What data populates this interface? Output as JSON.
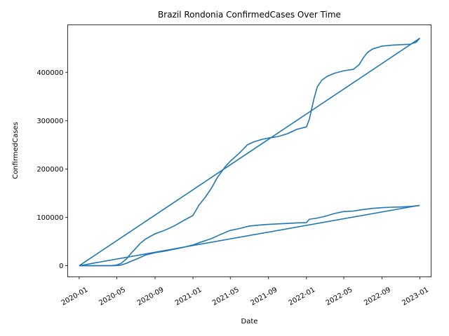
{
  "chart_data": {
    "type": "line",
    "title": "Brazil Rondonia ConfirmedCases Over Time",
    "xlabel": "Date",
    "ylabel": "ConfirmedCases",
    "xlim": [
      "2019-11-25",
      "2023-02-06"
    ],
    "ylim": [
      -23000,
      498000
    ],
    "grid": false,
    "x_ticks": [
      "2020-01",
      "2020-05",
      "2020-09",
      "2021-01",
      "2021-05",
      "2021-09",
      "2022-01",
      "2022-05",
      "2022-09",
      "2023-01"
    ],
    "y_ticks": [
      0,
      100000,
      200000,
      300000,
      400000
    ],
    "series": [
      {
        "color": "#1f77b4",
        "x": [
          "2020-01-01",
          "2020-04-15",
          "2020-05-01",
          "2020-05-15",
          "2020-06-01",
          "2020-06-15",
          "2020-07-01",
          "2020-07-15",
          "2020-08-01",
          "2020-09-01",
          "2020-10-01",
          "2020-11-01",
          "2020-12-01",
          "2021-01-01",
          "2021-01-20",
          "2021-02-10",
          "2021-03-01",
          "2021-03-20",
          "2021-04-15",
          "2021-05-01",
          "2021-06-01",
          "2021-06-25",
          "2021-07-15",
          "2021-08-10",
          "2021-09-01",
          "2021-10-01",
          "2021-11-01",
          "2021-12-01",
          "2022-01-01",
          "2022-01-10",
          "2022-01-25",
          "2022-02-05",
          "2022-02-20",
          "2022-03-10",
          "2022-04-01",
          "2022-05-01",
          "2022-06-01",
          "2022-06-20",
          "2022-07-01",
          "2022-07-15",
          "2022-08-01",
          "2022-09-01",
          "2022-10-01",
          "2022-11-01",
          "2022-12-01",
          "2022-12-20",
          "2022-12-31",
          "2020-01-01"
        ],
        "y": [
          0,
          300,
          1500,
          5000,
          14000,
          25000,
          36000,
          46000,
          55000,
          66000,
          73000,
          82000,
          93000,
          104000,
          125000,
          142000,
          160000,
          182000,
          205000,
          216000,
          234000,
          250000,
          256000,
          261000,
          264000,
          267000,
          273000,
          282000,
          287000,
          302000,
          345000,
          370000,
          384000,
          392000,
          398000,
          403000,
          406000,
          416000,
          428000,
          440000,
          448000,
          454000,
          456000,
          457000,
          458000,
          462000,
          470000,
          0
        ]
      },
      {
        "color": "#1f77b4",
        "x": [
          "2020-01-01",
          "2020-04-15",
          "2020-05-01",
          "2020-05-15",
          "2020-06-01",
          "2020-06-15",
          "2020-07-01",
          "2020-07-15",
          "2020-08-01",
          "2020-09-01",
          "2020-10-01",
          "2020-11-01",
          "2020-12-01",
          "2021-01-01",
          "2021-02-01",
          "2021-03-01",
          "2021-04-01",
          "2021-05-01",
          "2021-06-01",
          "2021-07-01",
          "2021-08-01",
          "2021-09-01",
          "2021-10-01",
          "2021-11-01",
          "2021-12-01",
          "2022-01-01",
          "2022-01-10",
          "2022-02-01",
          "2022-03-01",
          "2022-04-01",
          "2022-05-01",
          "2022-06-01",
          "2022-07-01",
          "2022-08-01",
          "2022-09-01",
          "2022-10-01",
          "2022-11-01",
          "2022-12-01",
          "2022-12-31"
        ],
        "y": [
          0,
          100,
          400,
          1500,
          5000,
          9000,
          13000,
          17000,
          22000,
          27000,
          30000,
          34000,
          38000,
          43000,
          50000,
          56000,
          65000,
          73000,
          77000,
          82000,
          84000,
          85500,
          86500,
          87500,
          88500,
          89000,
          96000,
          98000,
          102000,
          108000,
          112000,
          113000,
          116000,
          118500,
          120000,
          121000,
          121500,
          122500,
          124500
        ]
      },
      {
        "color": "#1f77b4",
        "x": [
          "2020-01-01",
          "2022-12-31"
        ],
        "y": [
          0,
          125000
        ]
      }
    ]
  }
}
